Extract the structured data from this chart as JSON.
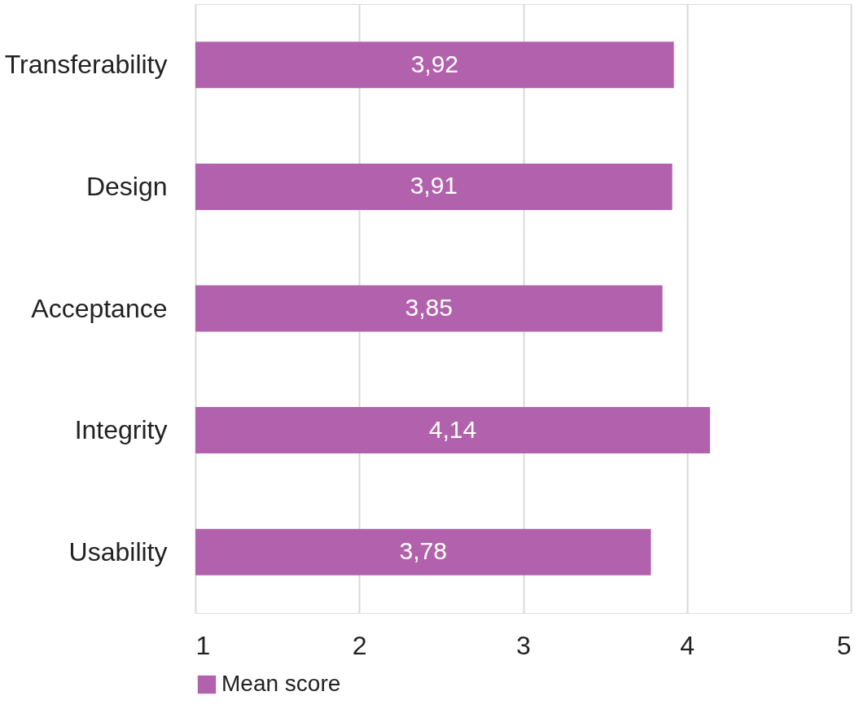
{
  "chart_data": {
    "type": "bar",
    "orientation": "horizontal",
    "categories": [
      "Transferability",
      "Design",
      "Acceptance",
      "Integrity",
      "Usability"
    ],
    "series": [
      {
        "name": "Mean score",
        "color": "#b262ad",
        "values": [
          3.92,
          3.91,
          3.85,
          4.14,
          3.78
        ],
        "value_labels": [
          "3,92",
          "3,91",
          "3,85",
          "4,14",
          "3,78"
        ]
      }
    ],
    "xlim": [
      1,
      5
    ],
    "xticks": [
      1,
      2,
      3,
      4,
      5
    ],
    "grid": "x",
    "legend": "bottom"
  }
}
